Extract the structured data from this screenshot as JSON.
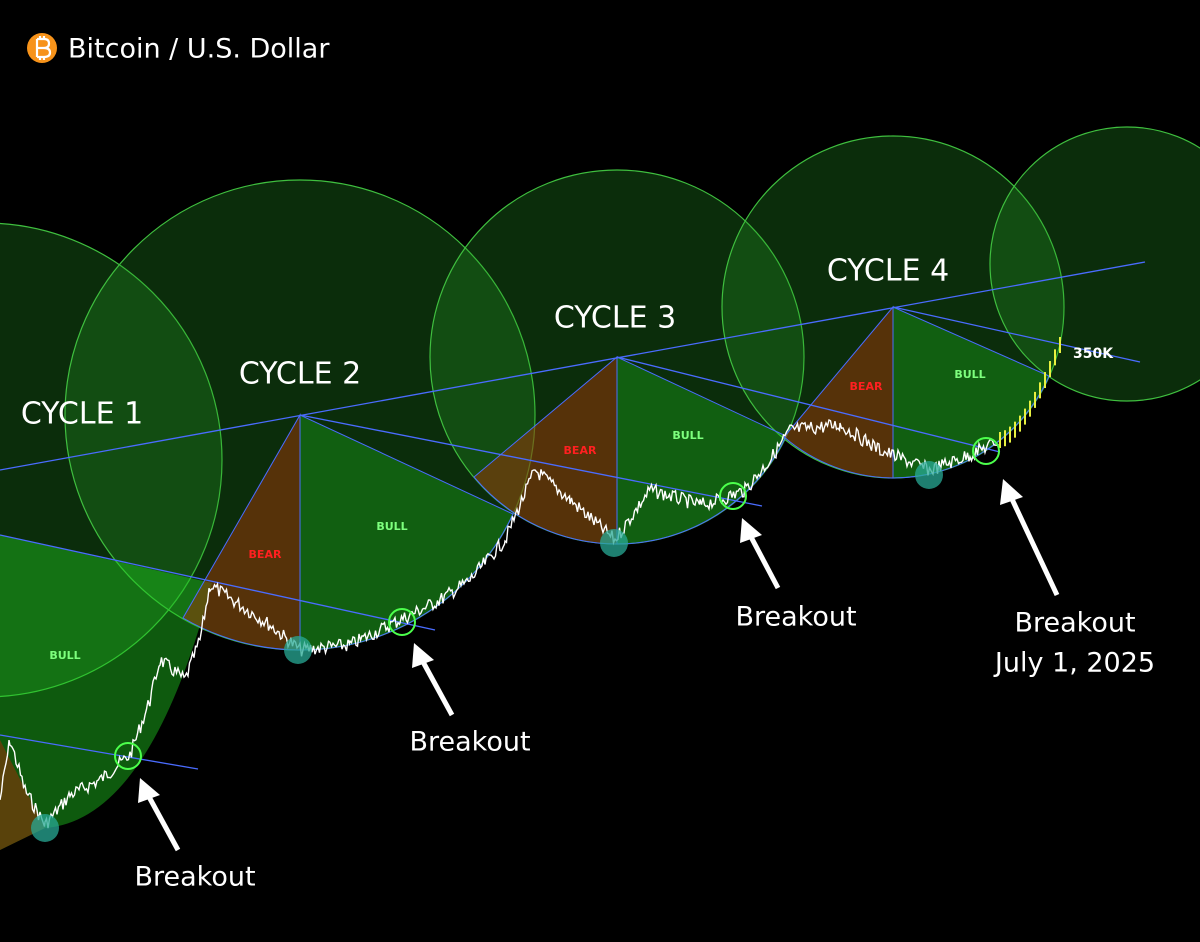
{
  "header": {
    "title": "Bitcoin / U.S. Dollar"
  },
  "cycles": [
    {
      "label": "CYCLE 1"
    },
    {
      "label": "CYCLE 2"
    },
    {
      "label": "CYCLE 3"
    },
    {
      "label": "CYCLE 4"
    }
  ],
  "phases": [
    {
      "label": "BULL"
    },
    {
      "label": "BEAR"
    },
    {
      "label": "BULL"
    },
    {
      "label": "BEAR"
    },
    {
      "label": "BULL"
    },
    {
      "label": "BEAR"
    },
    {
      "label": "BULL"
    }
  ],
  "breakouts": [
    {
      "label": "Breakout"
    },
    {
      "label": "Breakout"
    },
    {
      "label": "Breakout"
    },
    {
      "label": "Breakout",
      "date": "July 1, 2025"
    }
  ],
  "price_target": "350K"
}
